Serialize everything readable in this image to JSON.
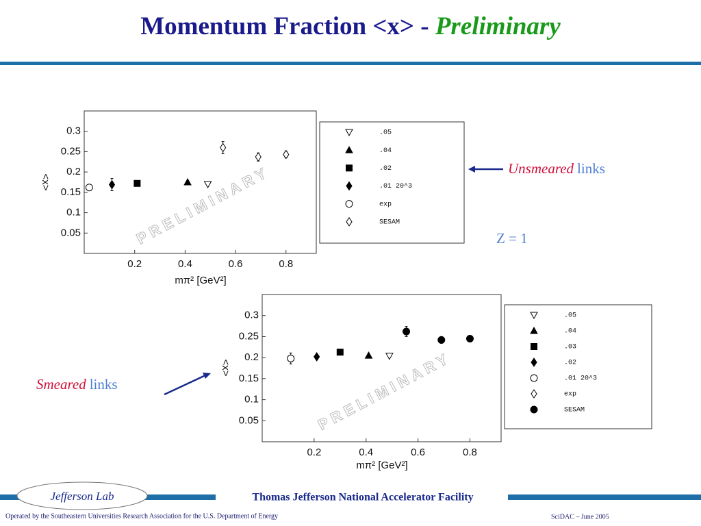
{
  "header": {
    "title": "Momentum Fraction <x> - ",
    "title_emphasis": "Preliminary"
  },
  "annotations": {
    "unsmeared": "Unsmeared",
    "unsmeared_links": "links",
    "z": "Z = 1",
    "smeared": "Smeared",
    "smeared_links": "links"
  },
  "footer": {
    "logo": "Jefferson Lab",
    "facility": "Thomas Jefferson National Accelerator Facility",
    "operated": "Operated by the Southeastern Universities Research Association for the U.S. Department of  Energy",
    "event": "SciDAC – June  2005"
  },
  "chart_data": [
    {
      "type": "scatter",
      "xlabel": "mπ² [GeV²]",
      "ylabel": "<x>",
      "watermark": "PRELIMINARY",
      "xlim": [
        0,
        0.92
      ],
      "ylim": [
        0,
        0.35
      ],
      "xticks": [
        0.2,
        0.4,
        0.6,
        0.8
      ],
      "yticks": [
        0.05,
        0.1,
        0.15,
        0.2,
        0.25,
        0.3
      ],
      "series": [
        {
          "name": ".05",
          "color": "#000000",
          "marker": "triangle-down-open",
          "x": [
            0.49
          ],
          "values": [
            0.17
          ]
        },
        {
          "name": ".04",
          "color": "#000000",
          "marker": "triangle",
          "x": [
            0.41
          ],
          "values": [
            0.175
          ]
        },
        {
          "name": ".02",
          "color": "#000000",
          "marker": "square",
          "x": [
            0.21
          ],
          "values": [
            0.172
          ]
        },
        {
          "name": ".01  20^3",
          "color": "#000000",
          "marker": "diamond",
          "x": [
            0.11
          ],
          "values": [
            0.169
          ],
          "errors": [
            0.015
          ]
        },
        {
          "name": "exp",
          "color": "#000000",
          "marker": "circle-open",
          "x": [
            0.02
          ],
          "values": [
            0.162
          ]
        },
        {
          "name": "SESAM",
          "color": "#000000",
          "marker": "diamond-open",
          "x": [
            0.55,
            0.69,
            0.8
          ],
          "values": [
            0.26,
            0.237,
            0.243
          ],
          "errors": [
            0.015,
            0.01,
            0.008
          ]
        }
      ]
    },
    {
      "type": "scatter",
      "xlabel": "mπ² [GeV²]",
      "ylabel": "<x>",
      "watermark": "PRELIMINARY",
      "xlim": [
        0,
        0.92
      ],
      "ylim": [
        0,
        0.35
      ],
      "xticks": [
        0.2,
        0.4,
        0.6,
        0.8
      ],
      "yticks": [
        0.05,
        0.1,
        0.15,
        0.2,
        0.25,
        0.3
      ],
      "series": [
        {
          "name": ".05",
          "color": "#000000",
          "marker": "triangle-down-open",
          "x": [
            0.49
          ],
          "values": [
            0.204
          ]
        },
        {
          "name": ".04",
          "color": "#000000",
          "marker": "triangle",
          "x": [
            0.41
          ],
          "values": [
            0.205
          ]
        },
        {
          "name": ".03",
          "color": "#000000",
          "marker": "square",
          "x": [
            0.3
          ],
          "values": [
            0.213
          ]
        },
        {
          "name": ".02",
          "color": "#000000",
          "marker": "diamond",
          "x": [
            0.21
          ],
          "values": [
            0.202
          ]
        },
        {
          "name": ".01  20^3",
          "color": "#000000",
          "marker": "circle-open",
          "x": [
            0.11
          ],
          "values": [
            0.198
          ],
          "errors": [
            0.013
          ]
        },
        {
          "name": "exp",
          "color": "#000000",
          "marker": "diamond-open",
          "x": [],
          "values": []
        },
        {
          "name": "SESAM",
          "color": "#000000",
          "marker": "circle",
          "x": [
            0.555,
            0.69,
            0.8
          ],
          "values": [
            0.262,
            0.242,
            0.245
          ],
          "errors": [
            0.012,
            0.008,
            0.004
          ]
        }
      ]
    }
  ]
}
